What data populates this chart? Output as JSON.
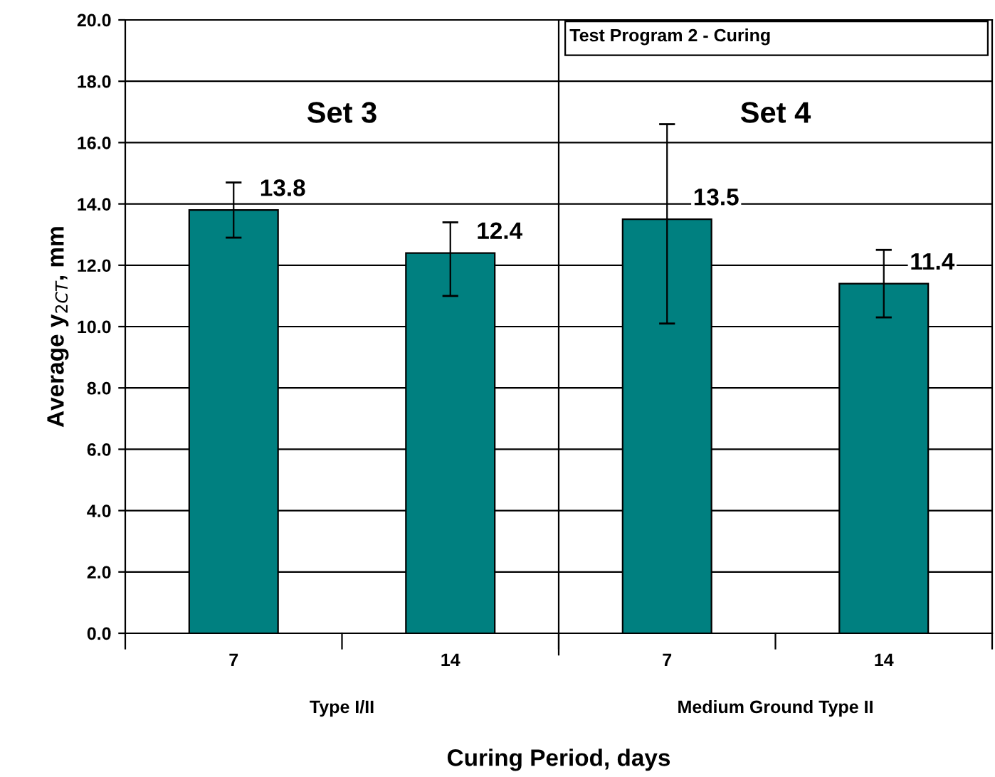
{
  "chart_data": {
    "type": "bar",
    "xlabel": "Curing Period, days",
    "ylabel": "Average y$_{2CT}$, mm",
    "categories": [
      "7",
      "14",
      "7",
      "14"
    ],
    "values": [
      13.8,
      12.4,
      13.5,
      11.4
    ],
    "errors": [
      [
        12.9,
        14.7
      ],
      [
        11.0,
        13.4
      ],
      [
        10.1,
        16.6
      ],
      [
        10.3,
        12.5
      ]
    ],
    "color": "#008080",
    "data_labels": true,
    "ylim": [
      0,
      20
    ],
    "yticks": [
      {
        "value": 0,
        "label": "0.0"
      },
      {
        "value": 2,
        "label": "2.0"
      },
      {
        "value": 4,
        "label": "4.0"
      },
      {
        "value": 6,
        "label": "6.0"
      },
      {
        "value": 8,
        "label": "8.0"
      },
      {
        "value": 10,
        "label": "10.0"
      },
      {
        "value": 12,
        "label": "12.0"
      },
      {
        "value": 14,
        "label": "14.0"
      },
      {
        "value": 16,
        "label": "16.0"
      },
      {
        "value": 18,
        "label": "18.0"
      },
      {
        "value": 20,
        "label": "20.0"
      }
    ],
    "grid": "y",
    "legend": false,
    "annotations": [
      "Set 3",
      "Set 4",
      "Type I/II",
      "Medium Ground Type II",
      "Test Program 2 - Curing"
    ]
  }
}
